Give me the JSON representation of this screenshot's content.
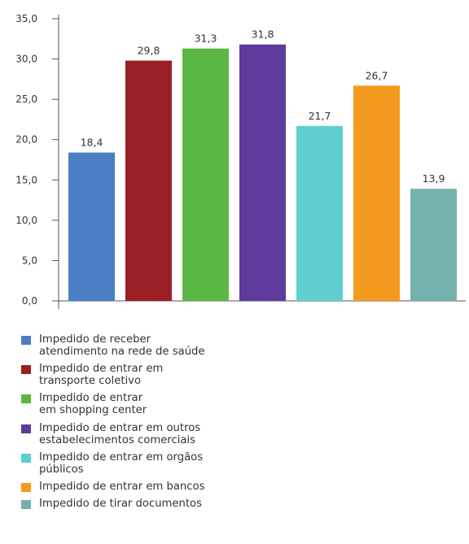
{
  "chart_data": {
    "type": "bar",
    "categories": [
      "Impedido de receber\natendimento na rede de saúde",
      "Impedido de entrar em\ntransporte coletivo",
      "Impedido de entrar\nem shopping center",
      "Impedido de entrar em outros\nestabelecimentos comerciais",
      "Impedido de entrar em orgãos\npúblicos",
      "Impedido de entrar em bancos",
      "Impedido de tirar documentos"
    ],
    "values": [
      18.4,
      29.8,
      31.3,
      31.8,
      21.7,
      26.7,
      13.9
    ],
    "value_labels": [
      "18,4",
      "29,8",
      "31,3",
      "31,8",
      "21,7",
      "26,7",
      "13,9"
    ],
    "colors": [
      "#4a7fc5",
      "#9a1f24",
      "#5cb845",
      "#5e3a9c",
      "#5fcfd0",
      "#f49a1f",
      "#75b1ad"
    ],
    "ylim": [
      0,
      35
    ],
    "yticks": [
      "0,0",
      "5,0",
      "10,0",
      "15,0",
      "20,0",
      "25,0",
      "30,0",
      "35,0"
    ],
    "grid": false,
    "legend_position": "bottom",
    "title": "",
    "xlabel": "",
    "ylabel": ""
  }
}
